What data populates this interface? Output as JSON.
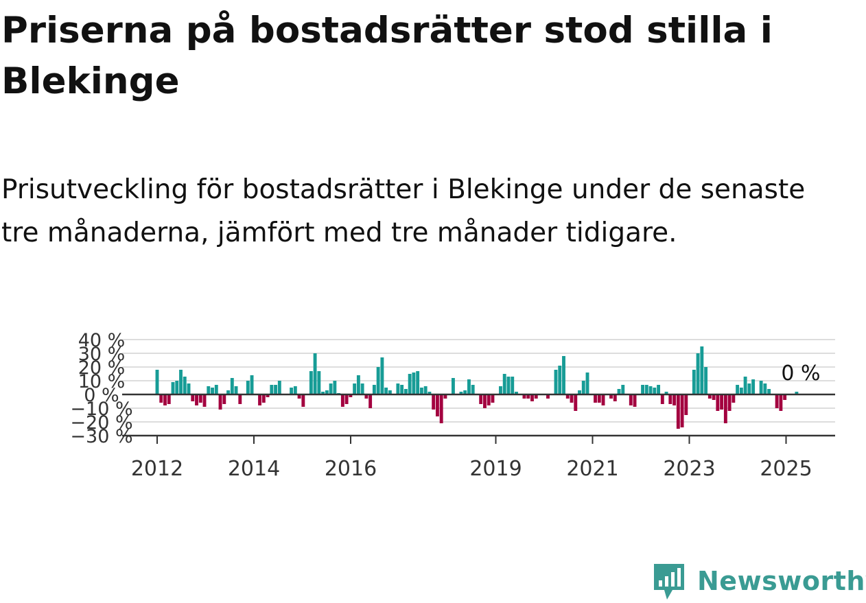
{
  "title": "Priserna på bostadsrätter stod stilla i Blekinge",
  "subtitle": "Prisutveckling för bostadsrätter i Blekinge under de senaste tre månaderna, jämfört med tre månader tidigare.",
  "brand": {
    "name": "Newsworthy"
  },
  "colors": {
    "positive": "#179c96",
    "negative": "#a3003f",
    "grid": "#dddddd",
    "axis": "#333333",
    "logo": "#3a9b93"
  },
  "chart_data": {
    "type": "bar",
    "x_start_year": 2012,
    "x_end_year": 2025.3,
    "ylim": [
      -30,
      40
    ],
    "yticks": [
      40,
      30,
      20,
      10,
      0,
      -10,
      -20,
      -30
    ],
    "ytick_labels": [
      "40 %",
      "30 %",
      "20 %",
      "10 %",
      "0 %",
      "−10 %",
      "−20 %",
      "−30 %"
    ],
    "xticks": [
      2012,
      2014,
      2016,
      2019,
      2021,
      2023,
      2025
    ],
    "xtick_labels": [
      "2012",
      "2014",
      "2016",
      "2019",
      "2021",
      "2023",
      "2025"
    ],
    "last_value_label": "0 %",
    "values": [
      18,
      -6,
      -8,
      -7,
      9,
      10,
      18,
      13,
      8,
      -5,
      -8,
      -6,
      -9,
      6,
      5,
      7,
      -11,
      -7,
      3,
      12,
      6,
      -7,
      0,
      10,
      14,
      0,
      -8,
      -6,
      -2,
      7,
      7,
      10,
      0,
      0,
      5,
      6,
      -3,
      -9,
      0,
      17,
      30,
      17,
      2,
      3,
      8,
      10,
      1,
      -9,
      -7,
      -2,
      8,
      14,
      8,
      -3,
      -10,
      7,
      20,
      27,
      5,
      3,
      0,
      8,
      7,
      4,
      15,
      16,
      17,
      5,
      6,
      2,
      -11,
      -16,
      -21,
      -3,
      0,
      12,
      0,
      2,
      3,
      11,
      7,
      0,
      -7,
      -10,
      -8,
      -6,
      0,
      6,
      15,
      13,
      13,
      2,
      0,
      -3,
      -3,
      -5,
      -3,
      0,
      0,
      -3,
      0,
      18,
      21,
      28,
      -3,
      -6,
      -12,
      3,
      10,
      16,
      0,
      -6,
      -6,
      -8,
      0,
      -3,
      -5,
      4,
      7,
      0,
      -8,
      -9,
      0,
      7,
      7,
      6,
      5,
      7,
      -7,
      2,
      -7,
      -8,
      -25,
      -24,
      -15,
      0,
      18,
      30,
      35,
      20,
      -3,
      -4,
      -12,
      -11,
      -21,
      -12,
      -6,
      7,
      5,
      13,
      8,
      11,
      0,
      10,
      8,
      4,
      0,
      -10,
      -12,
      -4,
      0,
      0,
      2,
      0
    ]
  }
}
